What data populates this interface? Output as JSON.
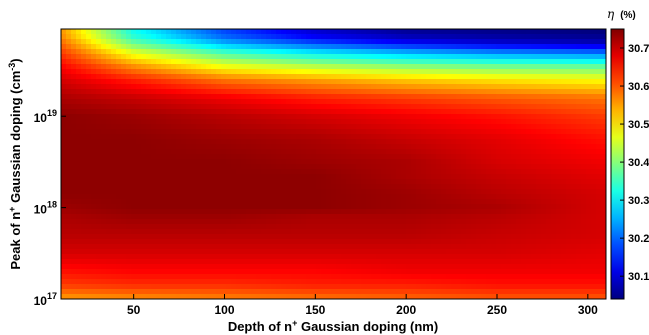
{
  "chart_data": {
    "type": "heatmap",
    "title": "",
    "xlabel": {
      "prefix": "Depth of n",
      "superscript": "+",
      "suffix": " Gaussian doping (nm)"
    },
    "ylabel": {
      "prefix": "Peak of n",
      "superscript": "+",
      "middle": " Gaussian doping (cm",
      "exponent": "-3",
      "suffix": ")"
    },
    "x_ticks": [
      {
        "value": 50,
        "label": "50"
      },
      {
        "value": 100,
        "label": "100"
      },
      {
        "value": 150,
        "label": "150"
      },
      {
        "value": 200,
        "label": "200"
      },
      {
        "value": 250,
        "label": "250"
      },
      {
        "value": 300,
        "label": "300"
      }
    ],
    "y_ticks": [
      {
        "value": 1e+17,
        "base": "10",
        "exponent": "17"
      },
      {
        "value": 1e+18,
        "base": "10",
        "exponent": "18"
      },
      {
        "value": 1e+19,
        "base": "10",
        "exponent": "19"
      }
    ],
    "xlim": [
      10,
      310
    ],
    "ylim": [
      1e+17,
      9e+19
    ],
    "y_scale": "log",
    "colorbar": {
      "symbol": "η",
      "unit": "(%)",
      "ticks": [
        "30.1",
        "30.2",
        "30.3",
        "30.4",
        "30.5",
        "30.6",
        "30.7"
      ],
      "tick_values": [
        30.1,
        30.2,
        30.3,
        30.4,
        30.5,
        30.6,
        30.7
      ],
      "range": [
        30.04,
        30.75
      ],
      "colormap": "jet"
    },
    "efficiency_profile": {
      "log10_peak": [
        17.0,
        17.15,
        17.3,
        17.5,
        17.7,
        17.9,
        18.0,
        18.15,
        18.35,
        18.5,
        18.75,
        19.0,
        19.2,
        19.4,
        19.55,
        19.7,
        19.8,
        19.9
      ],
      "depth_nm": [
        10,
        50,
        100,
        150,
        200,
        250,
        310
      ],
      "eta_percent": [
        [
          30.55,
          30.56,
          30.57,
          30.58,
          30.59,
          30.6,
          30.6
        ],
        [
          30.62,
          30.63,
          30.63,
          30.64,
          30.64,
          30.65,
          30.65
        ],
        [
          30.65,
          30.66,
          30.66,
          30.66,
          30.67,
          30.67,
          30.67
        ],
        [
          30.69,
          30.69,
          30.69,
          30.69,
          30.69,
          30.69,
          30.68
        ],
        [
          30.71,
          30.71,
          30.71,
          30.71,
          30.71,
          30.7,
          30.69
        ],
        [
          30.72,
          30.73,
          30.73,
          30.72,
          30.72,
          30.71,
          30.69
        ],
        [
          30.73,
          30.74,
          30.74,
          30.74,
          30.73,
          30.72,
          30.69
        ],
        [
          30.74,
          30.74,
          30.74,
          30.74,
          30.73,
          30.71,
          30.69
        ],
        [
          30.74,
          30.74,
          30.74,
          30.74,
          30.72,
          30.7,
          30.68
        ],
        [
          30.74,
          30.74,
          30.74,
          30.73,
          30.72,
          30.69,
          30.67
        ],
        [
          30.74,
          30.74,
          30.73,
          30.72,
          30.7,
          30.68,
          30.65
        ],
        [
          30.74,
          30.73,
          30.71,
          30.69,
          30.67,
          30.65,
          30.62
        ],
        [
          30.72,
          30.7,
          30.67,
          30.64,
          30.62,
          30.6,
          30.58
        ],
        [
          30.69,
          30.64,
          30.58,
          30.55,
          30.52,
          30.5,
          30.48
        ],
        [
          30.66,
          30.56,
          30.47,
          30.43,
          30.4,
          30.38,
          30.37
        ],
        [
          30.62,
          30.46,
          30.35,
          30.29,
          30.25,
          30.22,
          30.2
        ],
        [
          30.59,
          30.38,
          30.25,
          30.18,
          30.13,
          30.1,
          30.08
        ],
        [
          30.56,
          30.32,
          30.18,
          30.1,
          30.06,
          30.05,
          30.04
        ]
      ]
    }
  }
}
